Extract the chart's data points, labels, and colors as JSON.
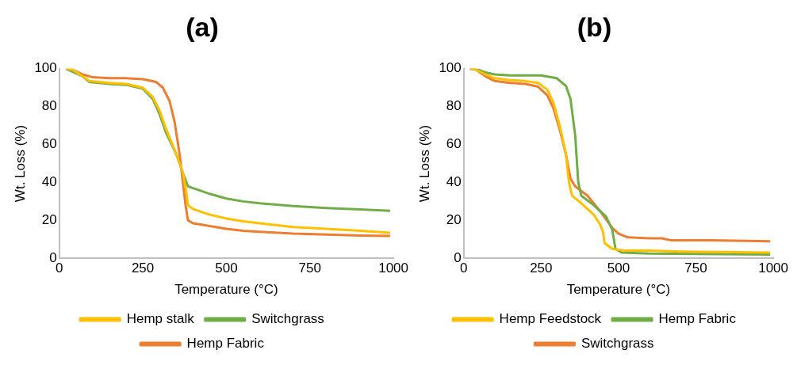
{
  "chart_data": [
    {
      "type": "line",
      "title": "(a)",
      "xlabel": "Temperature (°C)",
      "ylabel": "Wt. Loss (%)",
      "xlim": [
        0,
        1000
      ],
      "xticks": [
        0,
        250,
        500,
        750,
        1000
      ],
      "ylim": [
        0,
        100
      ],
      "yticks": [
        0,
        20,
        40,
        60,
        80,
        100
      ],
      "grid": false,
      "legend": "bottom",
      "series": [
        {
          "name": "Hemp stalk",
          "color": "#ffc000",
          "x": [
            20,
            40,
            70,
            90,
            150,
            200,
            250,
            280,
            300,
            320,
            350,
            370,
            380,
            385,
            400,
            450,
            500,
            550,
            600,
            700,
            800,
            900,
            990
          ],
          "values": [
            100,
            99.5,
            96,
            93.5,
            92.5,
            92,
            90,
            85,
            78,
            68,
            55,
            45,
            35,
            28,
            26,
            23,
            21,
            19.5,
            18.5,
            16.5,
            15.5,
            14.5,
            13.5
          ]
        },
        {
          "name": "Switchgrass",
          "color": "#70ad47",
          "x": [
            20,
            70,
            90,
            150,
            200,
            250,
            280,
            300,
            320,
            350,
            370,
            385,
            400,
            450,
            500,
            550,
            600,
            700,
            800,
            900,
            990
          ],
          "values": [
            100,
            96,
            93,
            92,
            91.5,
            89.5,
            84,
            76,
            66,
            55,
            45,
            38,
            37,
            34,
            31.5,
            30,
            29,
            27.5,
            26.5,
            25.8,
            25
          ]
        },
        {
          "name": "Hemp Fabric",
          "color": "#ed7d31",
          "x": [
            20,
            40,
            70,
            100,
            150,
            200,
            250,
            290,
            310,
            330,
            345,
            360,
            370,
            378,
            385,
            400,
            450,
            500,
            550,
            600,
            700,
            800,
            900,
            990
          ],
          "values": [
            100,
            99.5,
            97,
            95.5,
            95,
            95,
            94.5,
            93,
            90,
            83,
            72,
            55,
            40,
            28,
            20,
            18.5,
            17,
            15.5,
            14.5,
            14,
            13,
            12.5,
            12,
            11.8
          ]
        }
      ]
    },
    {
      "type": "line",
      "title": "(b)",
      "xlabel": "Temperature (°C)",
      "ylabel": "Wt. Loss (%)",
      "xlim": [
        0,
        1000
      ],
      "xticks": [
        0,
        250,
        500,
        750,
        1000
      ],
      "ylim": [
        0,
        100
      ],
      "yticks": [
        0,
        20,
        40,
        60,
        80,
        100
      ],
      "grid": false,
      "legend": "bottom",
      "series": [
        {
          "name": "Hemp Feedstock",
          "color": "#ffc000",
          "x": [
            20,
            40,
            70,
            100,
            150,
            200,
            240,
            270,
            290,
            310,
            330,
            340,
            350,
            380,
            420,
            440,
            450,
            455,
            480,
            520,
            600,
            700,
            990
          ],
          "values": [
            100,
            99.5,
            97,
            95,
            94,
            93.5,
            92.5,
            89,
            82,
            70,
            55,
            40,
            33,
            29,
            23,
            18,
            14,
            8,
            5,
            4,
            4,
            3.5,
            3
          ]
        },
        {
          "name": "Hemp Fabric",
          "color": "#70ad47",
          "x": [
            20,
            40,
            70,
            100,
            150,
            250,
            300,
            330,
            345,
            360,
            370,
            380,
            420,
            460,
            480,
            490,
            510,
            600,
            990
          ],
          "values": [
            100,
            100,
            98,
            97,
            96.5,
            96.5,
            95,
            91,
            84,
            65,
            40,
            33,
            28,
            22,
            15,
            5,
            3,
            2.5,
            2
          ]
        },
        {
          "name": "Switchgrass",
          "color": "#ed7d31",
          "x": [
            20,
            40,
            70,
            100,
            150,
            200,
            240,
            270,
            290,
            310,
            330,
            345,
            360,
            400,
            440,
            480,
            500,
            530,
            600,
            640,
            670,
            800,
            990
          ],
          "values": [
            100,
            99.5,
            96,
            93.5,
            92.5,
            92,
            90.5,
            86,
            79,
            68,
            55,
            42,
            38,
            33,
            25,
            16,
            13,
            11,
            10.5,
            10.5,
            9.5,
            9.5,
            9
          ]
        }
      ]
    }
  ]
}
